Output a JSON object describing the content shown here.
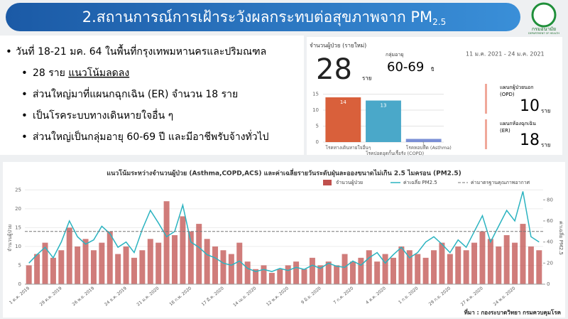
{
  "header": {
    "title": "2.สถานการณ์การเฝ้าระวังผลกระทบต่อสุขภาพจาก PM",
    "title_sub": "2.5",
    "logo_text": "กรมอนามัย",
    "logo_subtext": "DEPARTMENT OF HEALTH"
  },
  "bullets": {
    "main": "วันที่ 18-21 มค. 64 ในพื้นที่กรุงเทพมหานครและปริมณฑล",
    "sub0": {
      "text": "28 ราย",
      "underlined": "แนวโน้มลดลง"
    },
    "sub": [
      "ส่วนใหญ่มาที่แผนกฉุกเฉิน (ER) จำนวน 18 ราย",
      "เป็นโรคระบบทางเดินหายใจอื่น ๆ",
      "ส่วนใหญ่เป็นกลุ่มอายุ 60-69 ปี และมีอาชีพรับจ้างทั่วไป"
    ]
  },
  "dashboard": {
    "patients_label": "จำนวนผู้ป่วย (รายใหม่)",
    "patients": 28,
    "patients_unit": "ราย",
    "age_label": "กลุ่มอายุ",
    "age_group": "60-69",
    "age_unit": "ปี",
    "date_range": "11 ม.ค. 2021 - 24 ม.ค. 2021",
    "opd_label": [
      "แผนกผู้ป่วยนอก",
      "(OPD)"
    ],
    "opd": 10,
    "opd_unit": "ราย",
    "er_label": [
      "แผนกห้องฉุกเฉิน",
      "(ER)"
    ],
    "er": 18,
    "er_unit": "ราย"
  },
  "chart_data": [
    {
      "type": "bar",
      "categories": [
        "โรคทางเดินหายใจอื่นๆ",
        "โรคปอดอุดกั้นเรื้อรัง (COPD)",
        "โรคหอบหืด (Asthma)"
      ],
      "values": [
        14,
        13,
        1
      ],
      "colors": [
        "#d9603b",
        "#4aa8c9",
        "#7a8fd6"
      ],
      "ylim": [
        0,
        16
      ],
      "yticks": [
        0,
        5,
        10,
        15
      ],
      "grid": true
    },
    {
      "type": "combo",
      "title": "แนวโน้มระหว่างจำนวนผู้ป่วย (Asthma,COPD,ACS) และค่าเฉลี่ยรายวันระดับฝุ่นละอองขนาดไม่เกิน 2.5 ไมครอน (PM2.5)",
      "ylabel": "จำนวนผู้ป่วย",
      "y2label": "ค่าเฉลี่ย PM2.5",
      "categories": [
        "1 ต.ค. 2019",
        null,
        null,
        null,
        "29 ต.ค. 2019",
        null,
        null,
        null,
        "26 พ.ย. 2019",
        null,
        null,
        null,
        "24 ธ.ค. 2019",
        null,
        null,
        null,
        "21 ม.ค. 2020",
        null,
        null,
        null,
        "18 ก.พ. 2020",
        null,
        null,
        null,
        "17 มี.ค. 2020",
        null,
        null,
        null,
        "14 เม.ย. 2020",
        null,
        null,
        null,
        "12 พ.ค. 2020",
        null,
        null,
        null,
        "9 มิ.ย. 2020",
        null,
        null,
        null,
        "7 ก.ค. 2020",
        null,
        null,
        null,
        "4 ส.ค. 2020",
        null,
        null,
        null,
        "1 ก.ย. 2020",
        null,
        null,
        null,
        "29 ก.ย. 2020",
        null,
        null,
        null,
        "27 ต.ค. 2020",
        null,
        null,
        null,
        "24 พ.ย. 2020",
        null,
        null,
        null
      ],
      "series": [
        {
          "name": "จำนวนผู้ป่วย",
          "color": "#c0504d",
          "values": [
            5,
            8,
            11,
            7,
            9,
            15,
            10,
            12,
            9,
            11,
            14,
            8,
            10,
            7,
            9,
            12,
            11,
            22,
            13,
            18,
            14,
            16,
            12,
            10,
            9,
            8,
            11,
            6,
            4,
            5,
            3,
            4,
            5,
            6,
            4,
            7,
            5,
            6,
            5,
            8,
            6,
            7,
            9,
            6,
            8,
            7,
            10,
            9,
            8,
            7,
            9,
            11,
            8,
            10,
            9,
            11,
            14,
            12,
            10,
            13,
            11,
            16,
            10,
            9
          ]
        },
        {
          "name": "ค่าเฉลี่ย PM2.5",
          "color": "#2bb3c0",
          "axis": "y2",
          "values": [
            20,
            28,
            35,
            25,
            40,
            60,
            45,
            38,
            42,
            55,
            48,
            35,
            40,
            30,
            52,
            70,
            58,
            45,
            50,
            75,
            40,
            35,
            28,
            25,
            20,
            18,
            22,
            15,
            12,
            14,
            12,
            15,
            13,
            16,
            14,
            18,
            15,
            20,
            17,
            16,
            22,
            18,
            25,
            30,
            20,
            28,
            35,
            25,
            30,
            40,
            45,
            38,
            30,
            42,
            35,
            50,
            65,
            40,
            55,
            70,
            60,
            88,
            45,
            40
          ]
        }
      ],
      "reference_line": {
        "name": "ค่ามาตรฐานคุณภาพอากาศ",
        "value": 50,
        "axis": "y2",
        "color": "#777777"
      },
      "ylim": [
        0,
        26
      ],
      "yticks": [
        0,
        5,
        10,
        15,
        20,
        25
      ],
      "y2lim": [
        0,
        93
      ],
      "y2ticks": [
        0,
        20,
        40,
        60,
        80
      ],
      "grid": true
    }
  ],
  "source": "ที่มา : กองระบาดวิทยา กรมควบคุมโรค"
}
